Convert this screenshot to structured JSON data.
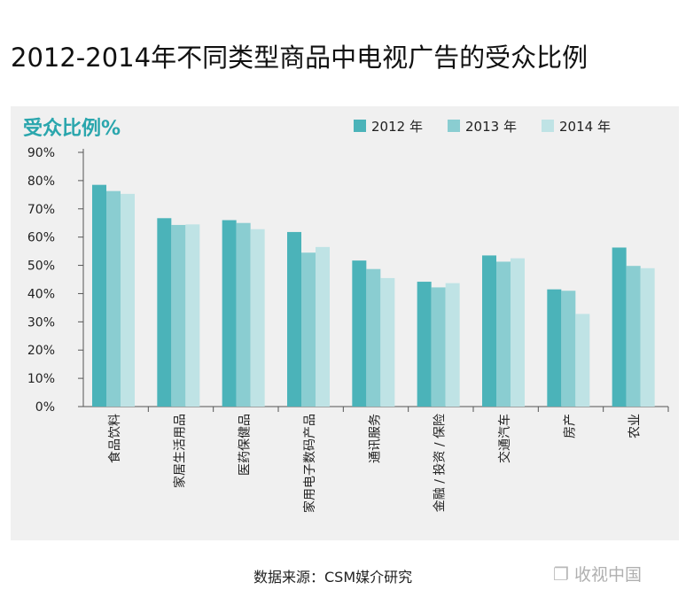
{
  "page_title": "2012-2014年不同类型商品中电视广告的受众比例",
  "source_note": "数据来源：CSM媒介研究",
  "watermark": {
    "icon": "wechat-icon",
    "text": "收视中国"
  },
  "colors": {
    "s2012": "#4bb3b9",
    "s2013": "#8acdd1",
    "s2014": "#bfe3e5",
    "title": "#2aa6ad",
    "panel": "#f0f0f0"
  },
  "chart_data": {
    "type": "bar",
    "title": "受众比例%",
    "xlabel": "",
    "ylabel": "受众比例%",
    "ylim": [
      0,
      90
    ],
    "yticks": [
      "0%",
      "10%",
      "20%",
      "30%",
      "40%",
      "50%",
      "60%",
      "70%",
      "80%",
      "90%"
    ],
    "legend_position": "top-right",
    "categories": [
      "食品饮料",
      "家居生活用品",
      "医药保健品",
      "家用电子数码产品",
      "通讯服务",
      "金融 / 投资 / 保险",
      "交通汽车",
      "房产",
      "农业"
    ],
    "series": [
      {
        "name": "2012 年",
        "values": [
          78.5,
          66.7,
          66.0,
          61.8,
          51.7,
          44.2,
          53.5,
          41.5,
          56.3
        ]
      },
      {
        "name": "2013 年",
        "values": [
          76.3,
          64.3,
          65.0,
          54.5,
          48.7,
          42.2,
          51.3,
          41.0,
          49.8
        ]
      },
      {
        "name": "2014 年",
        "values": [
          75.3,
          64.5,
          62.8,
          56.5,
          45.5,
          43.7,
          52.5,
          32.8,
          49.0
        ]
      }
    ]
  }
}
